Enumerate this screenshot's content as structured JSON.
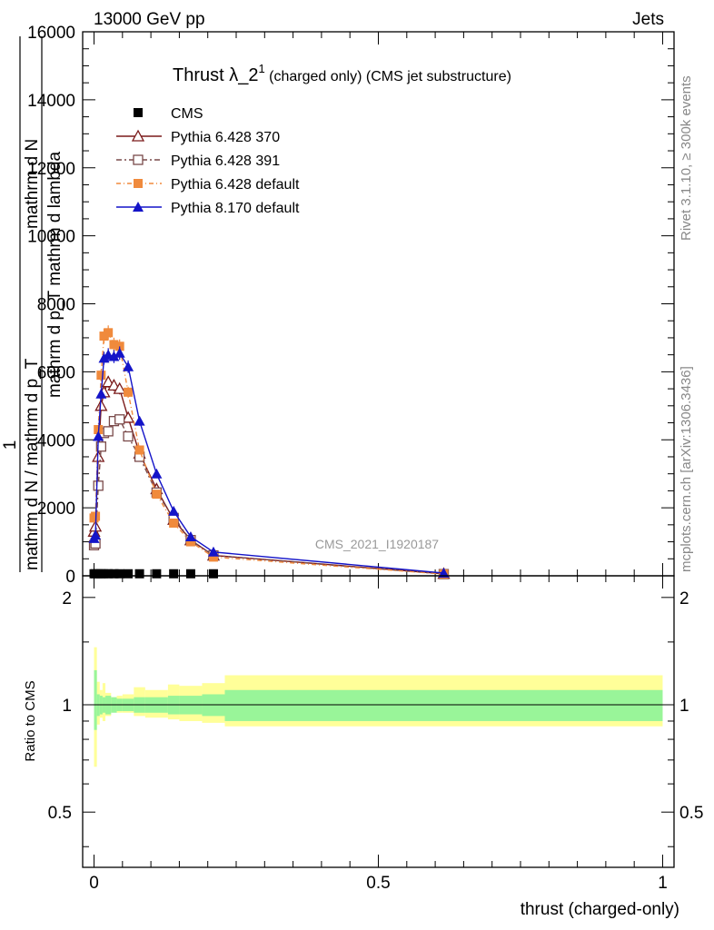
{
  "header": {
    "left": "13000 GeV pp",
    "right": "Jets"
  },
  "side_labels": {
    "rivet": "Rivet 3.1.10, ≥ 300k events",
    "mcplots": "mcplots.cern.ch [arXiv:1306.3436]"
  },
  "chart_data": [
    {
      "type": "line",
      "title_main": "Thrust λ_2",
      "title_sup": "1",
      "title_rest": " (charged only) (CMS jet substructure)",
      "watermark": "CMS_2021_I1920187",
      "ylabel_parts": [
        "1",
        "mathrm d N / mathrm d p_T",
        "mathrm d N",
        "mathrm d p_T mathrm d lambda"
      ],
      "xlim": [
        -0.02,
        1.02
      ],
      "ylim": [
        0,
        16000
      ],
      "yticks": [
        0,
        2000,
        4000,
        6000,
        8000,
        10000,
        12000,
        14000,
        16000
      ],
      "ytick_labels": [
        "0",
        "2000",
        "4000",
        "6000",
        "8000",
        "10000",
        "12000",
        "14000",
        "16000"
      ],
      "x": [
        0.0,
        0.0025,
        0.0075,
        0.0125,
        0.0175,
        0.025,
        0.035,
        0.045,
        0.06,
        0.08,
        0.11,
        0.14,
        0.17,
        0.21,
        0.615
      ],
      "cms_x": [
        0.0,
        0.0025,
        0.0075,
        0.0125,
        0.0175,
        0.025,
        0.035,
        0.045,
        0.06,
        0.08,
        0.11,
        0.14,
        0.17,
        0.21
      ],
      "cms_y": [
        60,
        60,
        60,
        60,
        60,
        60,
        60,
        60,
        60,
        60,
        60,
        60,
        60,
        60
      ],
      "series": [
        {
          "name": "CMS",
          "color": "#000000",
          "marker": "square-filled",
          "dash": ""
        },
        {
          "name": "Pythia 6.428 370",
          "color": "#7a1a1a",
          "marker": "triangle-open",
          "dash": "",
          "values": [
            1300,
            1450,
            3500,
            5000,
            5400,
            5700,
            5600,
            5500,
            4650,
            3600,
            2550,
            1650,
            1050,
            600,
            60
          ]
        },
        {
          "name": "Pythia 6.428 391",
          "color": "#7a4a4a",
          "marker": "square-open",
          "dash": "6,3,2,3",
          "values": [
            900,
            950,
            2650,
            3800,
            4200,
            4250,
            4550,
            4600,
            4100,
            3500,
            2450,
            1700,
            1050,
            600,
            50
          ]
        },
        {
          "name": "Pythia 6.428 default",
          "color": "#f08a3c",
          "marker": "square-filled",
          "dash": "5,3,1,3",
          "values": [
            1700,
            1750,
            4300,
            5900,
            7050,
            7150,
            6800,
            6750,
            5400,
            3700,
            2400,
            1550,
            1000,
            550,
            50
          ]
        },
        {
          "name": "Pythia 8.170 default",
          "color": "#1414c8",
          "marker": "triangle-filled",
          "dash": "",
          "values": [
            1100,
            1200,
            4100,
            5350,
            6400,
            6500,
            6450,
            6550,
            6150,
            4550,
            3000,
            1900,
            1150,
            700,
            80
          ]
        }
      ]
    },
    {
      "type": "area",
      "ylabel": "Ratio to CMS",
      "xlabel": "thrust (charged-only)",
      "xlim": [
        -0.02,
        1.02
      ],
      "ylim": [
        0.35,
        2.3
      ],
      "log_y": true,
      "yticks": [
        0.5,
        1,
        2
      ],
      "ytick_labels": [
        "0.5",
        "1",
        "2"
      ],
      "xticks": [
        0,
        0.5,
        1
      ],
      "xtick_labels": [
        "0",
        "0.5",
        "1"
      ],
      "bins": [
        0.0,
        0.005,
        0.01,
        0.015,
        0.02,
        0.03,
        0.04,
        0.05,
        0.07,
        0.09,
        0.13,
        0.15,
        0.19,
        0.23,
        1.0
      ],
      "green_low": [
        0.85,
        0.93,
        0.94,
        0.95,
        0.94,
        0.95,
        0.96,
        0.96,
        0.95,
        0.95,
        0.94,
        0.94,
        0.93,
        0.9
      ],
      "green_high": [
        1.25,
        1.07,
        1.06,
        1.05,
        1.06,
        1.05,
        1.04,
        1.04,
        1.05,
        1.05,
        1.06,
        1.06,
        1.07,
        1.1
      ],
      "yellow_low": [
        0.67,
        0.88,
        0.92,
        0.9,
        0.93,
        0.96,
        0.95,
        0.95,
        0.93,
        0.92,
        0.91,
        0.9,
        0.89,
        0.87
      ],
      "yellow_high": [
        1.45,
        1.16,
        1.1,
        1.15,
        1.08,
        1.05,
        1.06,
        1.07,
        1.12,
        1.1,
        1.14,
        1.13,
        1.15,
        1.21
      ]
    }
  ]
}
